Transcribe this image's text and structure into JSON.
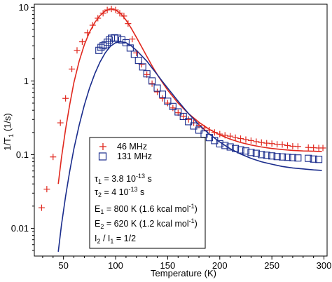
{
  "chart_data": {
    "type": "scatter",
    "xlabel": "Temperature (K)",
    "ylabel_parts": [
      "1/T",
      "1",
      " (1/s)"
    ],
    "x_ticks": [
      50,
      100,
      150,
      200,
      250,
      300
    ],
    "y_ticks": [
      {
        "value": 0.01,
        "label": "0.01"
      },
      {
        "value": 0.1,
        "label": "0.1"
      },
      {
        "value": 1,
        "label": "1"
      },
      {
        "value": 10,
        "label": "10"
      }
    ],
    "xlim": [
      22,
      303
    ],
    "ylim": [
      0.0042,
      11
    ],
    "yscale": "log",
    "grid": false,
    "legend_placement": "inside-lower-left",
    "series": [
      {
        "name": "46 MHz",
        "marker": "plus",
        "color": "#e0281e",
        "points": [
          [
            29,
            0.019
          ],
          [
            34,
            0.034
          ],
          [
            40,
            0.093
          ],
          [
            47,
            0.27
          ],
          [
            52,
            0.58
          ],
          [
            58,
            1.45
          ],
          [
            63,
            2.6
          ],
          [
            68,
            3.4
          ],
          [
            73,
            4.5
          ],
          [
            78,
            5.7
          ],
          [
            83,
            7.1
          ],
          [
            88,
            8.3
          ],
          [
            92,
            9.2
          ],
          [
            96,
            9.5
          ],
          [
            100,
            9.2
          ],
          [
            104,
            8.3
          ],
          [
            108,
            7.6
          ],
          [
            112,
            6.0
          ],
          [
            116,
            3.7
          ],
          [
            120,
            2.4
          ],
          [
            125,
            1.68
          ],
          [
            130,
            1.22
          ],
          [
            135,
            0.92
          ],
          [
            140,
            0.71
          ],
          [
            145,
            0.58
          ],
          [
            150,
            0.5
          ],
          [
            155,
            0.43
          ],
          [
            160,
            0.37
          ],
          [
            165,
            0.33
          ],
          [
            170,
            0.3
          ],
          [
            175,
            0.27
          ],
          [
            180,
            0.25
          ],
          [
            185,
            0.23
          ],
          [
            190,
            0.215
          ],
          [
            195,
            0.2
          ],
          [
            200,
            0.19
          ],
          [
            205,
            0.183
          ],
          [
            210,
            0.178
          ],
          [
            215,
            0.17
          ],
          [
            220,
            0.165
          ],
          [
            225,
            0.16
          ],
          [
            230,
            0.155
          ],
          [
            235,
            0.15
          ],
          [
            240,
            0.146
          ],
          [
            245,
            0.143
          ],
          [
            250,
            0.141
          ],
          [
            255,
            0.138
          ],
          [
            260,
            0.137
          ],
          [
            265,
            0.133
          ],
          [
            270,
            0.13
          ],
          [
            275,
            0.129
          ],
          [
            285,
            0.125
          ],
          [
            290,
            0.124
          ],
          [
            295,
            0.123
          ],
          [
            299,
            0.123
          ]
        ]
      },
      {
        "name": "131 MHz",
        "marker": "square",
        "color": "#1a2c8c",
        "points": [
          [
            84,
            2.6
          ],
          [
            86,
            2.85
          ],
          [
            88,
            3.0
          ],
          [
            90,
            3.1
          ],
          [
            92,
            3.35
          ],
          [
            94,
            3.6
          ],
          [
            96,
            3.8
          ],
          [
            99,
            3.85
          ],
          [
            102,
            3.8
          ],
          [
            106,
            3.6
          ],
          [
            110,
            3.3
          ],
          [
            114,
            2.8
          ],
          [
            118,
            2.3
          ],
          [
            122,
            1.9
          ],
          [
            126,
            1.55
          ],
          [
            130,
            1.25
          ],
          [
            135,
            1.0
          ],
          [
            140,
            0.8
          ],
          [
            145,
            0.66
          ],
          [
            150,
            0.53
          ],
          [
            155,
            0.45
          ],
          [
            160,
            0.38
          ],
          [
            165,
            0.33
          ],
          [
            170,
            0.28
          ],
          [
            175,
            0.245
          ],
          [
            180,
            0.215
          ],
          [
            185,
            0.19
          ],
          [
            190,
            0.17
          ],
          [
            195,
            0.155
          ],
          [
            200,
            0.14
          ],
          [
            205,
            0.133
          ],
          [
            210,
            0.127
          ],
          [
            215,
            0.121
          ],
          [
            220,
            0.116
          ],
          [
            225,
            0.112
          ],
          [
            230,
            0.107
          ],
          [
            235,
            0.104
          ],
          [
            240,
            0.1
          ],
          [
            245,
            0.098
          ],
          [
            250,
            0.096
          ],
          [
            255,
            0.094
          ],
          [
            260,
            0.093
          ],
          [
            265,
            0.092
          ],
          [
            270,
            0.091
          ],
          [
            275,
            0.09
          ],
          [
            285,
            0.089
          ],
          [
            290,
            0.087
          ],
          [
            295,
            0.086
          ]
        ]
      }
    ],
    "fit_curves": [
      {
        "color": "#e0281e",
        "points": [
          [
            45,
            0.04
          ],
          [
            48,
            0.09
          ],
          [
            52,
            0.22
          ],
          [
            56,
            0.48
          ],
          [
            60,
            0.95
          ],
          [
            65,
            1.85
          ],
          [
            70,
            3.1
          ],
          [
            75,
            4.6
          ],
          [
            80,
            6.2
          ],
          [
            85,
            7.7
          ],
          [
            90,
            8.9
          ],
          [
            95,
            9.5
          ],
          [
            100,
            9.2
          ],
          [
            105,
            8.2
          ],
          [
            110,
            6.7
          ],
          [
            115,
            5.2
          ],
          [
            120,
            3.9
          ],
          [
            125,
            2.9
          ],
          [
            130,
            2.15
          ],
          [
            135,
            1.6
          ],
          [
            140,
            1.22
          ],
          [
            145,
            0.95
          ],
          [
            150,
            0.75
          ],
          [
            160,
            0.5
          ],
          [
            170,
            0.36
          ],
          [
            180,
            0.275
          ],
          [
            190,
            0.22
          ],
          [
            200,
            0.185
          ],
          [
            210,
            0.162
          ],
          [
            220,
            0.146
          ],
          [
            230,
            0.135
          ],
          [
            240,
            0.127
          ],
          [
            250,
            0.121
          ],
          [
            260,
            0.117
          ],
          [
            270,
            0.114
          ],
          [
            280,
            0.112
          ],
          [
            290,
            0.111
          ],
          [
            298,
            0.11
          ]
        ]
      },
      {
        "color": "#1a2c8c",
        "points": [
          [
            45,
            0.0048
          ],
          [
            48,
            0.011
          ],
          [
            52,
            0.027
          ],
          [
            56,
            0.06
          ],
          [
            60,
            0.12
          ],
          [
            65,
            0.25
          ],
          [
            70,
            0.47
          ],
          [
            75,
            0.8
          ],
          [
            80,
            1.25
          ],
          [
            85,
            1.8
          ],
          [
            90,
            2.4
          ],
          [
            95,
            2.95
          ],
          [
            100,
            3.3
          ],
          [
            105,
            3.4
          ],
          [
            110,
            3.3
          ],
          [
            115,
            3.0
          ],
          [
            120,
            2.6
          ],
          [
            125,
            2.2
          ],
          [
            130,
            1.85
          ],
          [
            135,
            1.5
          ],
          [
            140,
            1.22
          ],
          [
            145,
            0.98
          ],
          [
            150,
            0.8
          ],
          [
            160,
            0.53
          ],
          [
            170,
            0.36
          ],
          [
            180,
            0.255
          ],
          [
            190,
            0.19
          ],
          [
            200,
            0.148
          ],
          [
            210,
            0.12
          ],
          [
            220,
            0.102
          ],
          [
            230,
            0.089
          ],
          [
            240,
            0.08
          ],
          [
            250,
            0.074
          ],
          [
            260,
            0.069
          ],
          [
            270,
            0.066
          ],
          [
            280,
            0.064
          ],
          [
            290,
            0.062
          ],
          [
            298,
            0.061
          ]
        ]
      }
    ],
    "legend_entries": [
      {
        "label": "46 MHz",
        "marker": "plus",
        "color": "#e0281e"
      },
      {
        "label": "131 MHz",
        "marker": "square",
        "color": "#1a2c8c"
      }
    ],
    "annotations": {
      "tau1": {
        "sym": "τ",
        "sub": "1",
        "text": " = 3.8 10",
        "exp": "-13",
        "unit": " s"
      },
      "tau2": {
        "sym": "τ",
        "sub": "2",
        "text": " = 4 10",
        "exp": "-13",
        "unit": " s"
      },
      "E1": {
        "sym": "E",
        "sub": "1",
        "text": " = 800 K  (1.6 kcal mol",
        "exp": "-1",
        "close": ")"
      },
      "E2": {
        "sym": "E",
        "sub": "2",
        "text": " = 620 K (1.2 kcal mol",
        "exp": "-1",
        "close": ")"
      },
      "ratio": {
        "a": "I",
        "a_sub": "2",
        "mid": " / I",
        "b_sub": "1",
        "rest": " = 1/2"
      }
    }
  }
}
